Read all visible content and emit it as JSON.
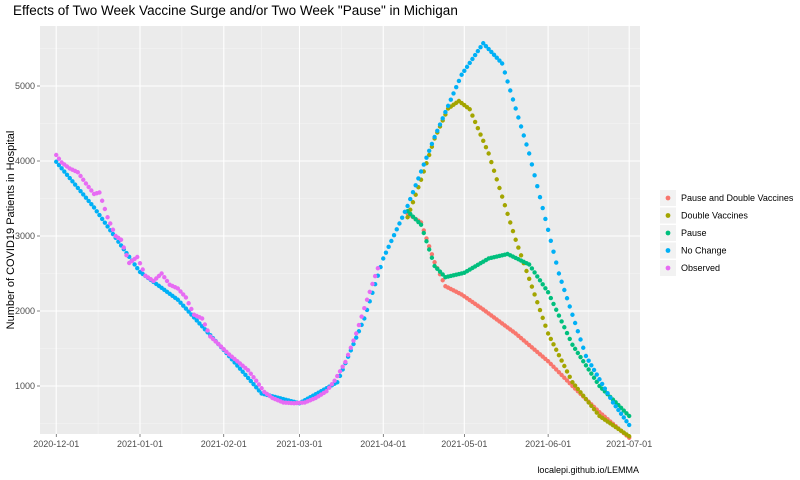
{
  "chart_data": {
    "type": "scatter",
    "title": "Effects of Two Week Vaccine Surge and/or Two Week \"Pause\" in Michigan",
    "xlabel": "",
    "ylabel": "Number of COVID19 Patients in Hospital",
    "caption": "localepi.github.io/LEMMA",
    "xlim": [
      "2020-11-25",
      "2021-07-05"
    ],
    "ylim": [
      360,
      5800
    ],
    "x_ticks": [
      "2020-12-01",
      "2021-01-01",
      "2021-02-01",
      "2021-03-01",
      "2021-04-01",
      "2021-05-01",
      "2021-06-01",
      "2021-07-01"
    ],
    "y_ticks": [
      1000,
      2000,
      3000,
      4000,
      5000
    ],
    "grid": true,
    "legend_position": "right",
    "series": [
      {
        "name": "Pause and Double Vaccines",
        "color": "#F8766D",
        "points": [
          [
            "2021-04-10",
            3300
          ],
          [
            "2021-04-15",
            3180
          ],
          [
            "2021-04-20",
            2650
          ],
          [
            "2021-04-24",
            2330
          ],
          [
            "2021-04-30",
            2220
          ],
          [
            "2021-05-08",
            2020
          ],
          [
            "2021-05-20",
            1700
          ],
          [
            "2021-06-01",
            1330
          ],
          [
            "2021-06-10",
            1000
          ],
          [
            "2021-06-20",
            650
          ],
          [
            "2021-07-01",
            310
          ]
        ]
      },
      {
        "name": "Double Vaccines",
        "color": "#A3A500",
        "points": [
          [
            "2021-04-10",
            3250
          ],
          [
            "2021-04-15",
            3750
          ],
          [
            "2021-04-20",
            4300
          ],
          [
            "2021-04-25",
            4700
          ],
          [
            "2021-04-29",
            4800
          ],
          [
            "2021-05-03",
            4690
          ],
          [
            "2021-05-10",
            4100
          ],
          [
            "2021-05-20",
            2950
          ],
          [
            "2021-06-01",
            1700
          ],
          [
            "2021-06-10",
            1050
          ],
          [
            "2021-06-20",
            600
          ],
          [
            "2021-07-01",
            330
          ]
        ]
      },
      {
        "name": "Pause",
        "color": "#00BF7D",
        "points": [
          [
            "2021-04-10",
            3330
          ],
          [
            "2021-04-15",
            3150
          ],
          [
            "2021-04-20",
            2600
          ],
          [
            "2021-04-24",
            2450
          ],
          [
            "2021-05-01",
            2510
          ],
          [
            "2021-05-10",
            2700
          ],
          [
            "2021-05-17",
            2760
          ],
          [
            "2021-05-25",
            2620
          ],
          [
            "2021-06-01",
            2250
          ],
          [
            "2021-06-10",
            1550
          ],
          [
            "2021-06-20",
            1000
          ],
          [
            "2021-07-01",
            600
          ]
        ]
      },
      {
        "name": "No Change",
        "color": "#00B0F6",
        "points": [
          [
            "2020-12-01",
            3990
          ],
          [
            "2020-12-15",
            3380
          ],
          [
            "2021-01-01",
            2520
          ],
          [
            "2021-01-15",
            2150
          ],
          [
            "2021-02-01",
            1480
          ],
          [
            "2021-02-15",
            900
          ],
          [
            "2021-03-01",
            770
          ],
          [
            "2021-03-15",
            1050
          ],
          [
            "2021-03-25",
            1900
          ],
          [
            "2021-04-01",
            2700
          ],
          [
            "2021-04-10",
            3400
          ],
          [
            "2021-04-20",
            4320
          ],
          [
            "2021-04-30",
            5150
          ],
          [
            "2021-05-08",
            5570
          ],
          [
            "2021-05-15",
            5300
          ],
          [
            "2021-05-25",
            4100
          ],
          [
            "2021-06-05",
            2500
          ],
          [
            "2021-06-15",
            1400
          ],
          [
            "2021-06-25",
            780
          ],
          [
            "2021-07-01",
            480
          ]
        ]
      },
      {
        "name": "Observed",
        "color": "#E76BF3",
        "points": [
          [
            "2020-12-01",
            4080
          ],
          [
            "2020-12-03",
            3980
          ],
          [
            "2020-12-06",
            3900
          ],
          [
            "2020-12-09",
            3850
          ],
          [
            "2020-12-12",
            3700
          ],
          [
            "2020-12-15",
            3560
          ],
          [
            "2020-12-17",
            3580
          ],
          [
            "2020-12-20",
            3250
          ],
          [
            "2020-12-23",
            3000
          ],
          [
            "2020-12-25",
            2950
          ],
          [
            "2020-12-28",
            2640
          ],
          [
            "2020-12-31",
            2720
          ],
          [
            "2021-01-03",
            2470
          ],
          [
            "2021-01-06",
            2400
          ],
          [
            "2021-01-09",
            2500
          ],
          [
            "2021-01-12",
            2350
          ],
          [
            "2021-01-15",
            2300
          ],
          [
            "2021-01-18",
            2180
          ],
          [
            "2021-01-21",
            1950
          ],
          [
            "2021-01-24",
            1900
          ],
          [
            "2021-01-27",
            1660
          ],
          [
            "2021-01-30",
            1560
          ],
          [
            "2021-02-03",
            1420
          ],
          [
            "2021-02-07",
            1300
          ],
          [
            "2021-02-10",
            1210
          ],
          [
            "2021-02-13",
            1070
          ],
          [
            "2021-02-16",
            920
          ],
          [
            "2021-02-19",
            840
          ],
          [
            "2021-02-23",
            780
          ],
          [
            "2021-02-27",
            770
          ],
          [
            "2021-03-03",
            780
          ],
          [
            "2021-03-07",
            840
          ],
          [
            "2021-03-11",
            930
          ],
          [
            "2021-03-14",
            1070
          ],
          [
            "2021-03-18",
            1320
          ],
          [
            "2021-03-22",
            1700
          ],
          [
            "2021-03-26",
            2150
          ],
          [
            "2021-03-30",
            2570
          ]
        ]
      }
    ]
  }
}
